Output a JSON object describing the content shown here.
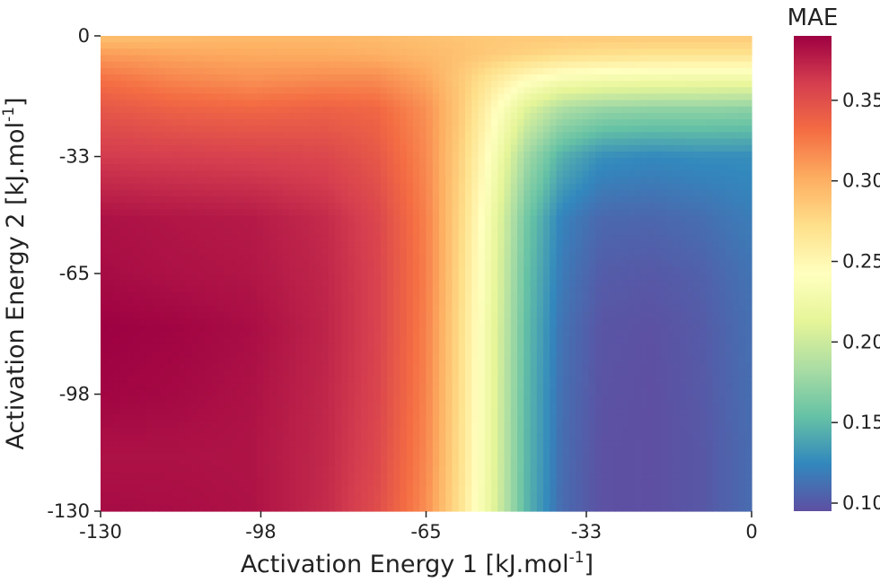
{
  "chart_data": {
    "type": "heatmap",
    "title": "",
    "xlabel": "Activation Energy 1 [kJ.mol",
    "xlabel_sup": "-1",
    "xlabel_tail": "]",
    "ylabel": "Activation Energy 2 [kJ.mol",
    "ylabel_sup": "-1",
    "ylabel_tail": "]",
    "xlim": [
      -130,
      0
    ],
    "ylim": [
      -130,
      0
    ],
    "x_ticks": [
      -130,
      -98,
      -65,
      -33,
      0
    ],
    "x_tick_labels": [
      "-130",
      "-98",
      "-65",
      "-33",
      "0"
    ],
    "y_ticks": [
      0,
      -33,
      -65,
      -98,
      -130
    ],
    "y_tick_labels": [
      "0",
      "-33",
      "-65",
      "-98",
      "-130"
    ],
    "grid": false,
    "colormap": "Spectral_r",
    "colorbar": {
      "title": "MAE",
      "range": [
        0.095,
        0.39
      ],
      "ticks": [
        0.1,
        0.15,
        0.2,
        0.25,
        0.3,
        0.35
      ],
      "tick_labels": [
        "0.10",
        "0.15",
        "0.20",
        "0.25",
        "0.30",
        "0.35"
      ]
    },
    "x": [
      -130,
      -115,
      -100,
      -85,
      -75,
      -65,
      -58,
      -52,
      -45,
      -38,
      -30,
      -20,
      -10,
      0
    ],
    "y": [
      0,
      -5,
      -12,
      -20,
      -33,
      -50,
      -65,
      -80,
      -98,
      -115,
      -130
    ],
    "z": [
      [
        0.29,
        0.292,
        0.295,
        0.295,
        0.293,
        0.29,
        0.288,
        0.286,
        0.286,
        0.286,
        0.286,
        0.286,
        0.286,
        0.285
      ],
      [
        0.31,
        0.305,
        0.303,
        0.302,
        0.3,
        0.295,
        0.29,
        0.285,
        0.28,
        0.275,
        0.272,
        0.27,
        0.27,
        0.27
      ],
      [
        0.33,
        0.32,
        0.315,
        0.318,
        0.318,
        0.305,
        0.285,
        0.265,
        0.245,
        0.232,
        0.228,
        0.226,
        0.225,
        0.224
      ],
      [
        0.345,
        0.338,
        0.335,
        0.338,
        0.335,
        0.315,
        0.285,
        0.25,
        0.21,
        0.185,
        0.175,
        0.172,
        0.172,
        0.17
      ],
      [
        0.362,
        0.36,
        0.358,
        0.355,
        0.345,
        0.318,
        0.28,
        0.238,
        0.18,
        0.145,
        0.128,
        0.125,
        0.127,
        0.127
      ],
      [
        0.382,
        0.38,
        0.378,
        0.37,
        0.356,
        0.322,
        0.276,
        0.226,
        0.16,
        0.122,
        0.108,
        0.107,
        0.111,
        0.119
      ],
      [
        0.385,
        0.382,
        0.38,
        0.372,
        0.358,
        0.323,
        0.274,
        0.223,
        0.155,
        0.118,
        0.102,
        0.1,
        0.104,
        0.114
      ],
      [
        0.39,
        0.388,
        0.384,
        0.373,
        0.358,
        0.322,
        0.272,
        0.22,
        0.152,
        0.114,
        0.098,
        0.096,
        0.101,
        0.112
      ],
      [
        0.388,
        0.386,
        0.382,
        0.372,
        0.357,
        0.321,
        0.271,
        0.219,
        0.15,
        0.112,
        0.097,
        0.095,
        0.1,
        0.111
      ],
      [
        0.382,
        0.382,
        0.381,
        0.371,
        0.355,
        0.319,
        0.27,
        0.218,
        0.149,
        0.111,
        0.096,
        0.095,
        0.099,
        0.11
      ],
      [
        0.385,
        0.384,
        0.382,
        0.37,
        0.352,
        0.316,
        0.268,
        0.216,
        0.148,
        0.11,
        0.096,
        0.095,
        0.099,
        0.11
      ]
    ]
  }
}
